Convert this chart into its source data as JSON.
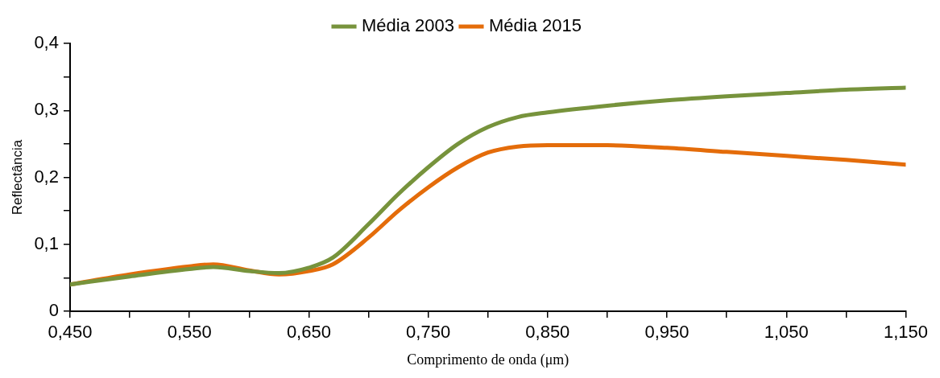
{
  "chart_data": {
    "type": "line",
    "xlabel": "Comprimento de onda (μm)",
    "ylabel": "Reflectância",
    "x": [
      0.45,
      0.5,
      0.55,
      0.57,
      0.6,
      0.625,
      0.65,
      0.67,
      0.7,
      0.725,
      0.75,
      0.775,
      0.8,
      0.825,
      0.85,
      0.9,
      0.95,
      1.0,
      1.05,
      1.1,
      1.15
    ],
    "series": [
      {
        "name": "Média 2003",
        "color": "#77933c",
        "values": [
          0.04,
          0.052,
          0.063,
          0.066,
          0.06,
          0.057,
          0.065,
          0.08,
          0.13,
          0.175,
          0.215,
          0.25,
          0.275,
          0.29,
          0.297,
          0.307,
          0.315,
          0.321,
          0.326,
          0.331,
          0.334
        ]
      },
      {
        "name": "Média 2015",
        "color": "#e46c0a",
        "values": [
          0.04,
          0.055,
          0.067,
          0.07,
          0.061,
          0.055,
          0.06,
          0.07,
          0.11,
          0.15,
          0.185,
          0.215,
          0.237,
          0.246,
          0.248,
          0.248,
          0.244,
          0.238,
          0.232,
          0.226,
          0.219
        ]
      }
    ],
    "xlim": [
      0.45,
      1.15
    ],
    "xticks": [
      {
        "value": 0.45,
        "label": "0,450"
      },
      {
        "value": 0.5,
        "label": null
      },
      {
        "value": 0.55,
        "label": "0,550"
      },
      {
        "value": 0.6,
        "label": null
      },
      {
        "value": 0.65,
        "label": "0,650"
      },
      {
        "value": 0.7,
        "label": null
      },
      {
        "value": 0.75,
        "label": "0,750"
      },
      {
        "value": 0.8,
        "label": null
      },
      {
        "value": 0.85,
        "label": "0,850"
      },
      {
        "value": 0.9,
        "label": null
      },
      {
        "value": 0.95,
        "label": "0,950"
      },
      {
        "value": 1.0,
        "label": null
      },
      {
        "value": 1.05,
        "label": "1,050"
      },
      {
        "value": 1.1,
        "label": null
      },
      {
        "value": 1.15,
        "label": "1,150"
      }
    ],
    "ylim": [
      0,
      0.4
    ],
    "yticks": [
      0,
      {
        "value": 0.05,
        "label": null
      },
      {
        "value": 0.1,
        "label": "0,1"
      },
      {
        "value": 0.15,
        "label": null
      },
      {
        "value": 0.2,
        "label": "0,2"
      },
      {
        "value": 0.25,
        "label": null
      },
      {
        "value": 0.3,
        "label": "0,3"
      },
      {
        "value": 0.35,
        "label": null
      },
      {
        "value": 0.4,
        "label": "0,4"
      }
    ],
    "grid": false,
    "legend": "top",
    "marker": "none",
    "line_style": "solid"
  }
}
